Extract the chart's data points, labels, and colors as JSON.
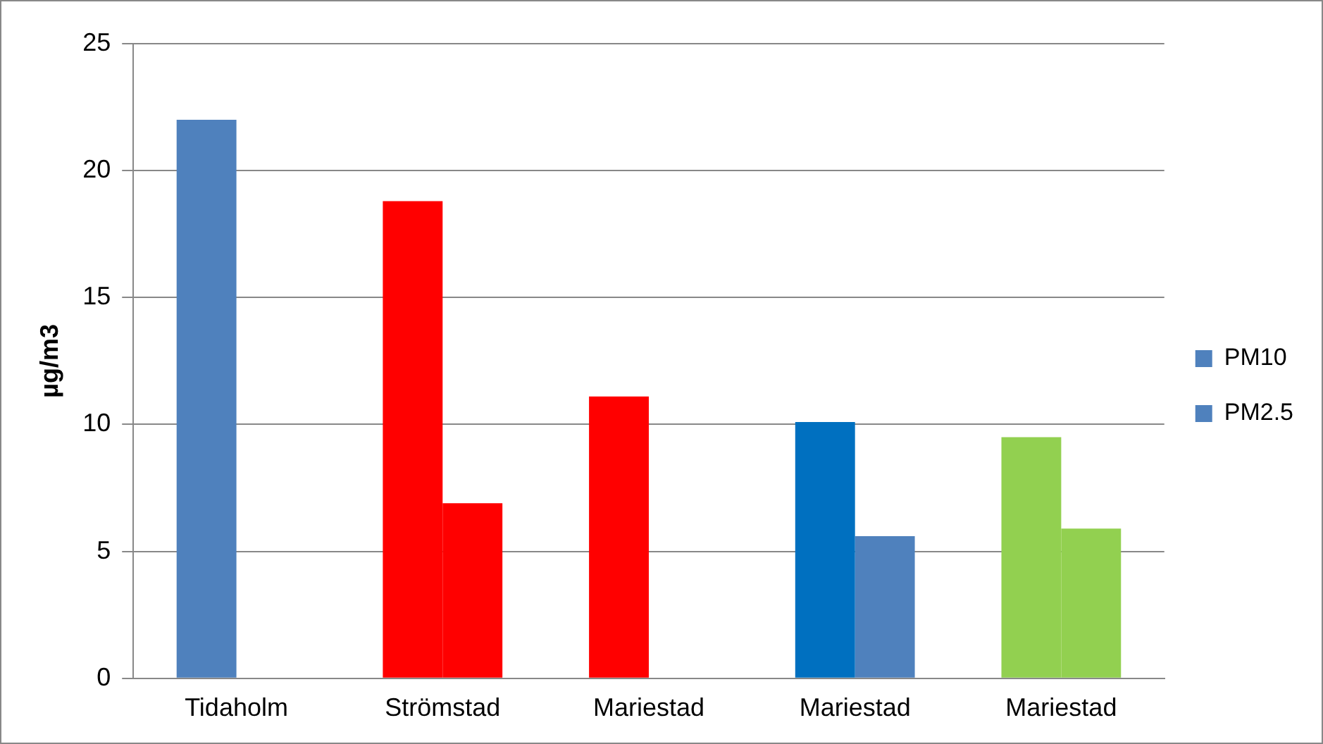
{
  "chart_data": {
    "type": "bar",
    "ylabel": "µg/m3",
    "categories": [
      "Tidaholm",
      "Strömstad",
      "Mariestad",
      "Mariestad",
      "Mariestad"
    ],
    "series": [
      {
        "name": "PM10",
        "color": "#4f81bd",
        "colors": [
          "#4f81bd",
          "#ff0000",
          "#ff0000",
          "#0070c0",
          "#92d050"
        ],
        "values": [
          22,
          18.8,
          11.1,
          10.1,
          9.5
        ]
      },
      {
        "name": "PM2.5",
        "color": "#4f81bd",
        "colors": [
          "#4f81bd",
          "#ff0000",
          "#ff0000",
          "#4f81bd",
          "#92d050"
        ],
        "values": [
          null,
          6.9,
          null,
          5.6,
          5.9
        ]
      }
    ],
    "ylim": [
      0,
      25
    ],
    "yticks": [
      0,
      5,
      10,
      15,
      20,
      25
    ],
    "grid": "y",
    "legend": "right"
  }
}
